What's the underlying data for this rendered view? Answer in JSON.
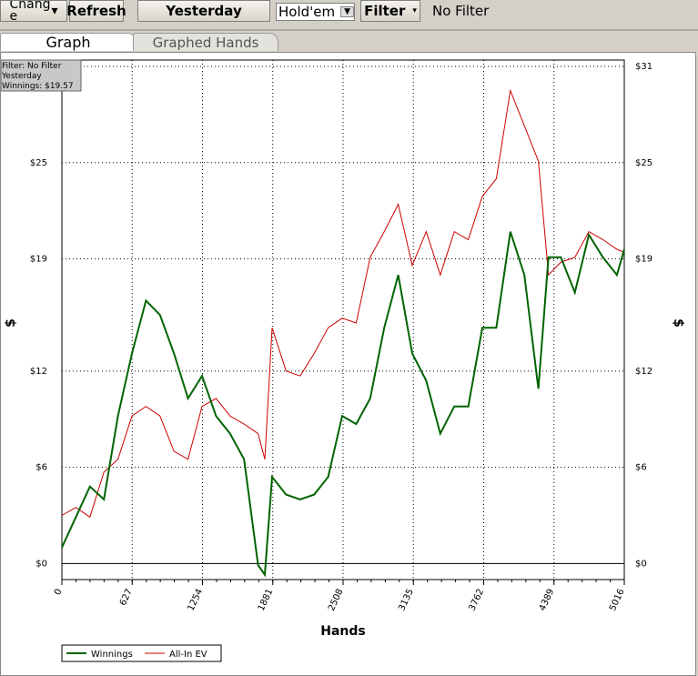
{
  "toolbar": {
    "change": "Change",
    "refresh": "Refresh",
    "period": "Yesterday",
    "game": "Hold'em",
    "filter": "Filter",
    "filter_status": "No Filter"
  },
  "tabs": [
    "Graph",
    "Graphed Hands"
  ],
  "chart_data": {
    "type": "line",
    "annotation": [
      "Filter: No Filter",
      "Yesterday",
      "Winnings: $19.57"
    ],
    "xlabel": "Hands",
    "ylabel": "$",
    "x": [
      0,
      125,
      250,
      375,
      500,
      625,
      750,
      875,
      1000,
      1125,
      1250,
      1375,
      1500,
      1625,
      1750,
      1810,
      1875,
      2000,
      2125,
      2250,
      2375,
      2500,
      2625,
      2750,
      2875,
      3000,
      3125,
      3250,
      3375,
      3500,
      3625,
      3750,
      3875,
      4000,
      4125,
      4250,
      4340,
      4450,
      4575,
      4700,
      4825,
      4950,
      5016
    ],
    "series": [
      {
        "name": "Winnings",
        "color": "#006400",
        "values": [
          1.0,
          2.9,
          4.8,
          4.0,
          9.2,
          13.1,
          16.4,
          15.5,
          13.1,
          10.3,
          11.7,
          9.2,
          8.1,
          6.5,
          -0.1,
          -0.7,
          5.4,
          4.3,
          4.0,
          4.3,
          5.4,
          9.2,
          8.7,
          10.3,
          14.7,
          18.0,
          13.1,
          11.4,
          8.1,
          9.8,
          9.8,
          14.7,
          14.7,
          20.7,
          18.0,
          10.9,
          19.1,
          19.1,
          16.9,
          20.5,
          19.1,
          18.0,
          19.6
        ]
      },
      {
        "name": "All-In EV",
        "color": "#cc0000",
        "values": [
          3.0,
          3.5,
          2.9,
          5.7,
          6.5,
          9.2,
          9.8,
          9.2,
          7.0,
          6.5,
          9.8,
          10.3,
          9.2,
          8.7,
          8.1,
          6.5,
          14.7,
          12.0,
          11.7,
          13.1,
          14.7,
          15.3,
          15.0,
          19.1,
          20.7,
          22.4,
          18.6,
          20.7,
          18.0,
          20.7,
          20.2,
          22.9,
          24.0,
          29.5,
          27.3,
          25.1,
          18.0,
          18.8,
          19.1,
          20.7,
          20.2,
          19.6,
          19.4
        ]
      }
    ],
    "xlim": [
      0,
      5016
    ],
    "xticks": [
      0,
      627,
      1254,
      1881,
      2508,
      3135,
      3762,
      4389,
      5016
    ],
    "ylim": [
      -1,
      31.4
    ],
    "yticks": [
      {
        "value": 0,
        "label": "$0"
      },
      {
        "value": 6,
        "label": "$6"
      },
      {
        "value": 12,
        "label": "$12"
      },
      {
        "value": 19,
        "label": "$19"
      },
      {
        "value": 25,
        "label": "$25"
      },
      {
        "value": 31,
        "label": "$31"
      }
    ],
    "grid": true,
    "legend": "bottom-left"
  }
}
